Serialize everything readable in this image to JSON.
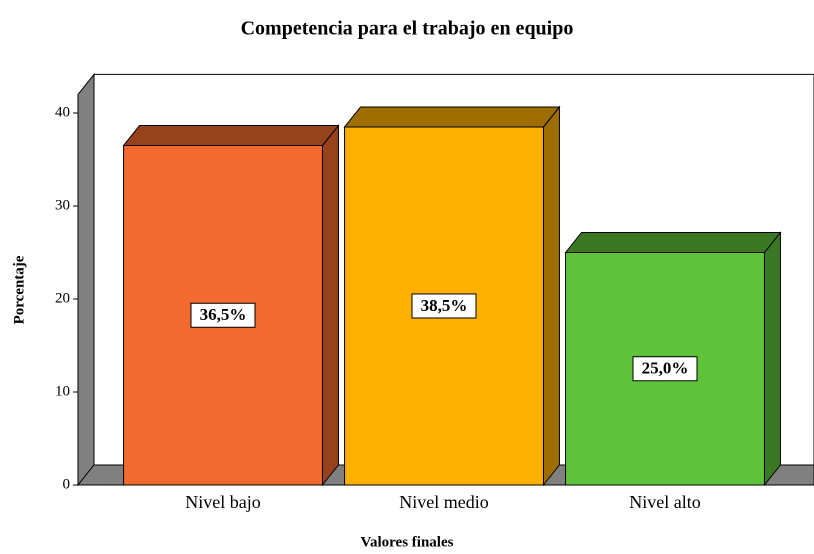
{
  "chart_data": {
    "type": "bar3d",
    "title": "Competencia para el trabajo en equipo",
    "xlabel": "Valores finales",
    "ylabel": "Porcentaje",
    "categories": [
      "Nivel bajo",
      "Nivel medio",
      "Nivel alto"
    ],
    "values": [
      36.5,
      38.5,
      25.0
    ],
    "value_labels": [
      "36,5%",
      "38,5%",
      "25,0%"
    ],
    "colors": [
      "#f26a2e",
      "#ffb000",
      "#5ec23a"
    ],
    "ylim": [
      0,
      42
    ],
    "yticks": [
      0,
      10,
      20,
      30,
      40
    ]
  }
}
